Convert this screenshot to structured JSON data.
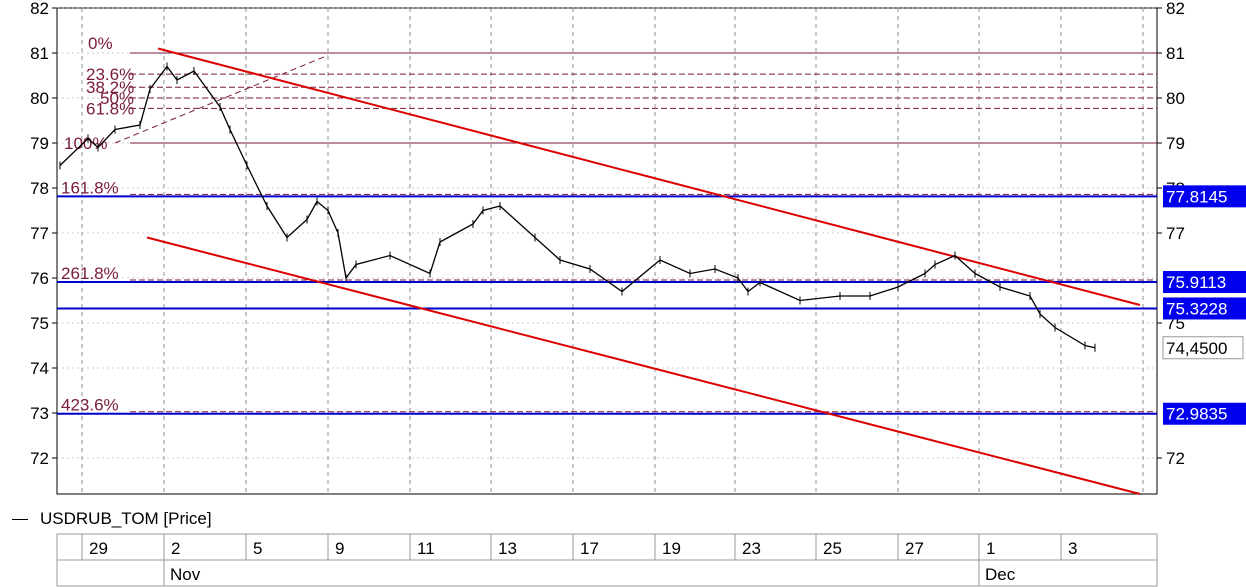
{
  "chart_data": {
    "type": "candlestick",
    "symbol": "USDRUB_TOM",
    "legend": "USDRUB_TOM [Price]",
    "ylim": [
      71.2,
      82
    ],
    "y_ticks": [
      72,
      73,
      74,
      75,
      76,
      77,
      78,
      79,
      80,
      81,
      82
    ],
    "right_y_ticks": [
      72,
      75,
      77,
      78,
      79,
      80,
      81,
      82
    ],
    "x_day_labels": [
      "29",
      "2",
      "5",
      "9",
      "11",
      "13",
      "17",
      "19",
      "23",
      "25",
      "27",
      "1",
      "3"
    ],
    "x_month_labels": [
      "Nov",
      "Dec"
    ],
    "last_price_label": "74,4500",
    "fibonacci_retracement": [
      {
        "label": "0%",
        "value": 81.0
      },
      {
        "label": "23.6%",
        "value": 80.53
      },
      {
        "label": "38.2%",
        "value": 80.24
      },
      {
        "label": "50%",
        "value": 80.0
      },
      {
        "label": "61.8%",
        "value": 79.77
      },
      {
        "label": "100%",
        "value": 79.0
      }
    ],
    "fibonacci_extensions": [
      {
        "label": "161.8%",
        "value": 77.8145
      },
      {
        "label": "261.8%",
        "value": 75.9113
      },
      {
        "label": "423.6%",
        "value": 72.9835
      }
    ],
    "horizontal_levels": [
      {
        "label": "77.8145",
        "value": 77.8145
      },
      {
        "label": "75.9113",
        "value": 75.9113
      },
      {
        "label": "75.3228",
        "value": 75.3228
      },
      {
        "label": "72.9835",
        "value": 72.9835
      }
    ],
    "trend_channel": {
      "upper": {
        "start": [
          "Nov 1",
          81.1
        ],
        "end": [
          "Dec 5",
          75.4
        ]
      },
      "lower": {
        "start": [
          "Oct 30",
          76.9
        ],
        "end": [
          "Dec 5",
          71.2
        ]
      }
    },
    "price_series": [
      {
        "x": "Oct 29",
        "y": 78.5
      },
      {
        "x": "Oct 30",
        "y": 79.1
      },
      {
        "x": "Oct 30",
        "y": 78.9
      },
      {
        "x": "Oct 31",
        "y": 79.3
      },
      {
        "x": "Nov 1",
        "y": 79.4
      },
      {
        "x": "Nov 1",
        "y": 80.2
      },
      {
        "x": "Nov 2",
        "y": 80.7
      },
      {
        "x": "Nov 2",
        "y": 80.4
      },
      {
        "x": "Nov 3",
        "y": 80.6
      },
      {
        "x": "Nov 4",
        "y": 79.8
      },
      {
        "x": "Nov 4",
        "y": 79.3
      },
      {
        "x": "Nov 5",
        "y": 78.5
      },
      {
        "x": "Nov 6",
        "y": 77.6
      },
      {
        "x": "Nov 7",
        "y": 76.9
      },
      {
        "x": "Nov 8",
        "y": 77.3
      },
      {
        "x": "Nov 8",
        "y": 77.7
      },
      {
        "x": "Nov 9",
        "y": 77.5
      },
      {
        "x": "Nov 9",
        "y": 77.0
      },
      {
        "x": "Nov 10",
        "y": 76.0
      },
      {
        "x": "Nov 10",
        "y": 76.3
      },
      {
        "x": "Nov 11",
        "y": 76.5
      },
      {
        "x": "Nov 12",
        "y": 76.1
      },
      {
        "x": "Nov 12",
        "y": 76.8
      },
      {
        "x": "Nov 13",
        "y": 77.2
      },
      {
        "x": "Nov 13",
        "y": 77.5
      },
      {
        "x": "Nov 14",
        "y": 77.6
      },
      {
        "x": "Nov 15",
        "y": 76.9
      },
      {
        "x": "Nov 16",
        "y": 76.4
      },
      {
        "x": "Nov 17",
        "y": 76.2
      },
      {
        "x": "Nov 18",
        "y": 75.7
      },
      {
        "x": "Nov 19",
        "y": 76.4
      },
      {
        "x": "Nov 20",
        "y": 76.1
      },
      {
        "x": "Nov 21",
        "y": 76.2
      },
      {
        "x": "Nov 22",
        "y": 76.0
      },
      {
        "x": "Nov 22",
        "y": 75.7
      },
      {
        "x": "Nov 23",
        "y": 75.9
      },
      {
        "x": "Nov 24",
        "y": 75.5
      },
      {
        "x": "Nov 25",
        "y": 75.6
      },
      {
        "x": "Nov 26",
        "y": 75.6
      },
      {
        "x": "Nov 27",
        "y": 75.8
      },
      {
        "x": "Nov 28",
        "y": 76.1
      },
      {
        "x": "Nov 28",
        "y": 76.3
      },
      {
        "x": "Nov 29",
        "y": 76.5
      },
      {
        "x": "Nov 30",
        "y": 76.1
      },
      {
        "x": "Dec 1",
        "y": 75.8
      },
      {
        "x": "Dec 2",
        "y": 75.6
      },
      {
        "x": "Dec 2",
        "y": 75.2
      },
      {
        "x": "Dec 3",
        "y": 74.9
      },
      {
        "x": "Dec 4",
        "y": 74.5
      },
      {
        "x": "Dec 4",
        "y": 74.45
      }
    ]
  }
}
